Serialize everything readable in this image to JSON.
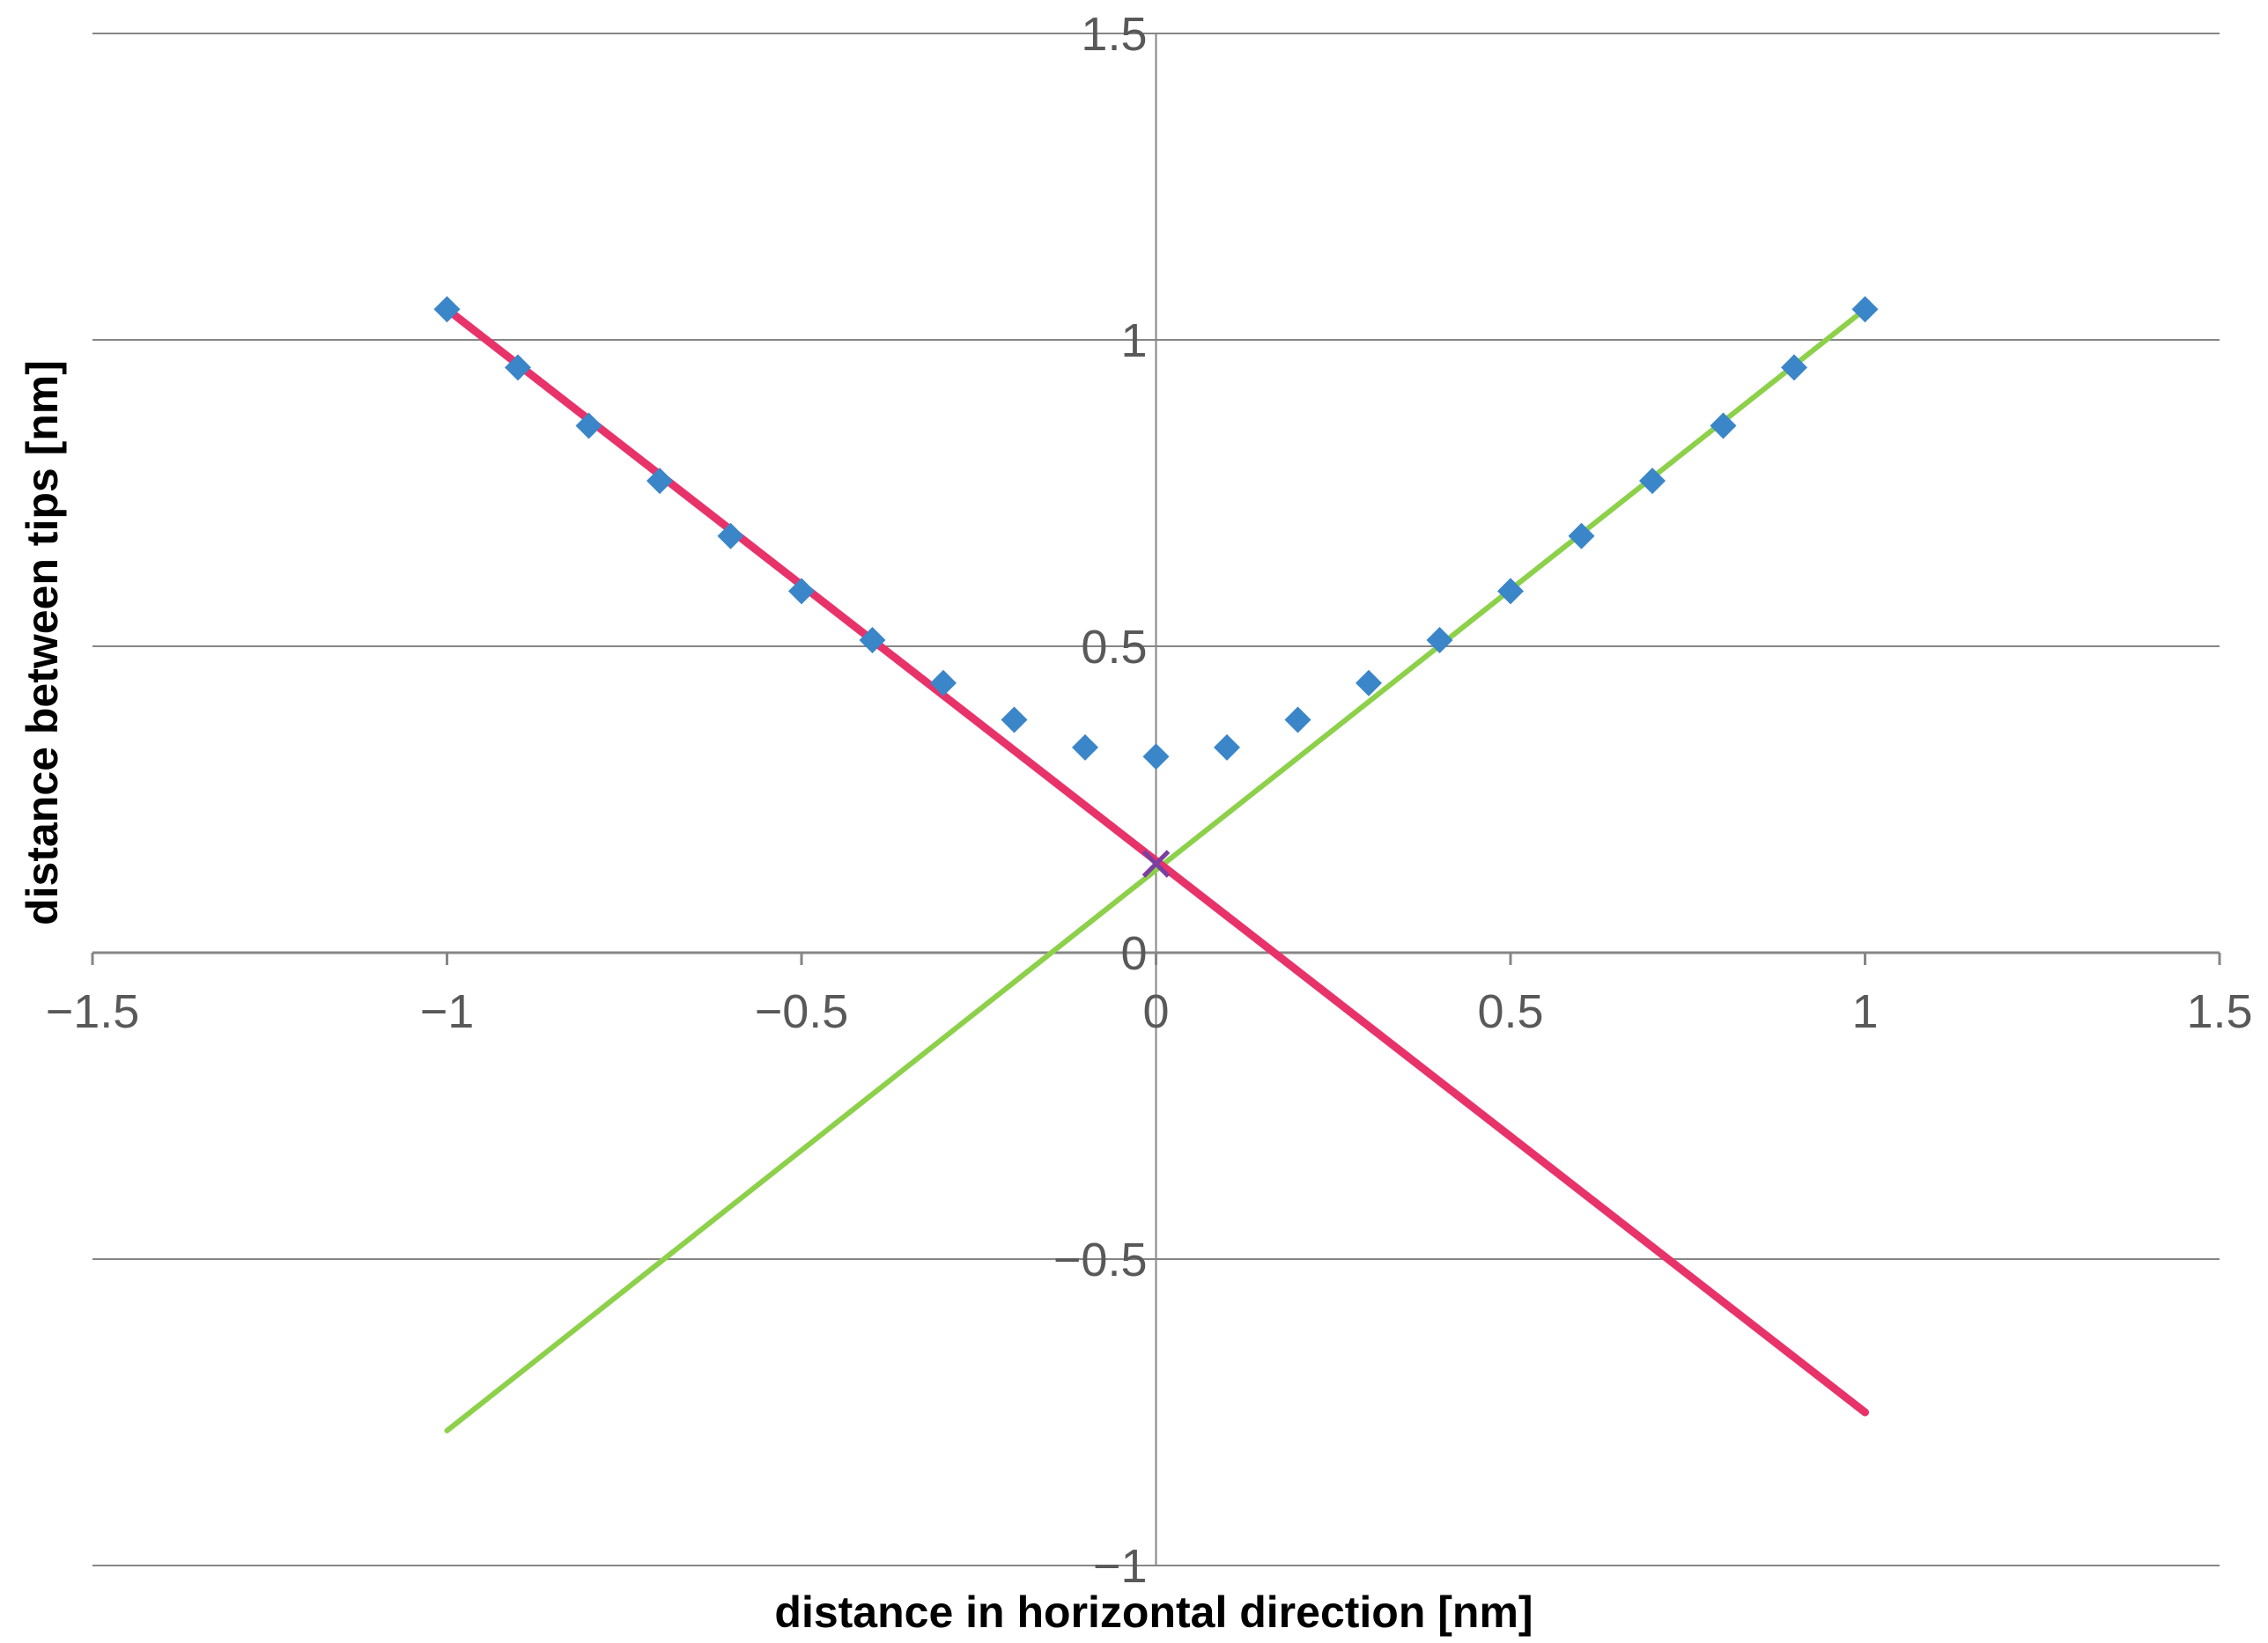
{
  "chart_data": {
    "type": "scatter",
    "title": "",
    "xlabel": "distance in horizontal direction [nm]",
    "ylabel": "distance between tips [nm]",
    "xlim": [
      -1.5,
      1.5
    ],
    "ylim": [
      -1,
      1.5
    ],
    "x_ticks": [
      -1.5,
      -1,
      -0.5,
      0,
      0.5,
      1,
      1.5
    ],
    "x_tick_labels": [
      "−1.5",
      "−1",
      "−0.5",
      "0",
      "0.5",
      "1",
      "1.5"
    ],
    "y_ticks": [
      1.5,
      1,
      0.5,
      0,
      -0.5,
      -1
    ],
    "y_tick_labels": [
      "1.5",
      "1",
      "0.5",
      "0",
      "−0.5",
      "−1"
    ],
    "grid": "horizontal",
    "legend": "none",
    "series": [
      {
        "kind": "markers",
        "marker": "diamond",
        "color": "#3a86c8",
        "x": [
          -1,
          -0.9,
          -0.8,
          -0.7,
          -0.6,
          -0.5,
          -0.4,
          -0.3,
          -0.2,
          -0.1,
          0,
          0.1,
          0.2,
          0.3,
          0.4,
          0.5,
          0.6,
          0.7,
          0.8,
          0.9,
          1
        ],
        "y": [
          1.05,
          0.955,
          0.86,
          0.77,
          0.68,
          0.59,
          0.51,
          0.44,
          0.38,
          0.335,
          0.32,
          0.335,
          0.38,
          0.44,
          0.51,
          0.59,
          0.68,
          0.77,
          0.86,
          0.955,
          1.05
        ]
      },
      {
        "kind": "line",
        "color": "#8dd04a",
        "x": [
          -1,
          1
        ],
        "y": [
          -0.78,
          1.05
        ]
      },
      {
        "kind": "line",
        "color": "#e8336a",
        "x": [
          -1,
          1
        ],
        "y": [
          1.05,
          -0.75
        ]
      },
      {
        "kind": "markers",
        "marker": "x",
        "color": "#7a3fa0",
        "x": [
          0
        ],
        "y": [
          0.145
        ]
      }
    ]
  }
}
